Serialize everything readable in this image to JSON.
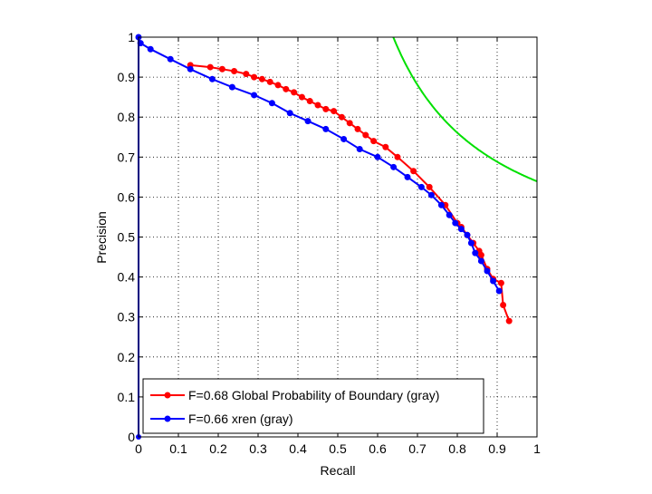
{
  "chart_data": {
    "type": "line",
    "title": "",
    "xlabel": "Recall",
    "ylabel": "Precision",
    "xlim": [
      0,
      1
    ],
    "ylim": [
      0,
      1
    ],
    "grid": true,
    "legend_position": "lower-left",
    "xticks": [
      "0",
      "0.1",
      "0.2",
      "0.3",
      "0.4",
      "0.5",
      "0.6",
      "0.7",
      "0.8",
      "0.9",
      "1"
    ],
    "yticks": [
      "0",
      "0.1",
      "0.2",
      "0.3",
      "0.4",
      "0.5",
      "0.6",
      "0.7",
      "0.8",
      "0.9",
      "1"
    ],
    "series": [
      {
        "name": "F=0.68 Global Probability of Boundary (gray)",
        "color": "#ff0000",
        "markers": true,
        "x": [
          0.13,
          0.18,
          0.21,
          0.24,
          0.27,
          0.29,
          0.31,
          0.33,
          0.35,
          0.37,
          0.39,
          0.41,
          0.43,
          0.45,
          0.47,
          0.49,
          0.51,
          0.53,
          0.55,
          0.57,
          0.59,
          0.62,
          0.65,
          0.69,
          0.73,
          0.77,
          0.8,
          0.81,
          0.825,
          0.84,
          0.855,
          0.86,
          0.875,
          0.89,
          0.91,
          0.915,
          0.93
        ],
        "y": [
          0.93,
          0.925,
          0.92,
          0.915,
          0.908,
          0.9,
          0.895,
          0.888,
          0.88,
          0.87,
          0.862,
          0.85,
          0.84,
          0.83,
          0.82,
          0.815,
          0.8,
          0.785,
          0.77,
          0.755,
          0.74,
          0.725,
          0.7,
          0.665,
          0.625,
          0.58,
          0.535,
          0.525,
          0.505,
          0.485,
          0.465,
          0.455,
          0.42,
          0.395,
          0.385,
          0.33,
          0.29
        ]
      },
      {
        "name": "F=0.66 xren (gray)",
        "color": "#0000ff",
        "markers": true,
        "x": [
          0.0,
          0.005,
          0.03,
          0.08,
          0.13,
          0.185,
          0.235,
          0.29,
          0.335,
          0.38,
          0.425,
          0.47,
          0.515,
          0.555,
          0.6,
          0.64,
          0.675,
          0.71,
          0.735,
          0.76,
          0.78,
          0.795,
          0.81,
          0.825,
          0.835,
          0.845,
          0.86,
          0.875,
          0.89,
          0.905
        ],
        "y": [
          1.0,
          0.985,
          0.97,
          0.945,
          0.92,
          0.895,
          0.875,
          0.855,
          0.835,
          0.81,
          0.79,
          0.77,
          0.745,
          0.72,
          0.7,
          0.675,
          0.65,
          0.625,
          0.605,
          0.58,
          0.555,
          0.535,
          0.52,
          0.505,
          0.485,
          0.46,
          0.44,
          0.415,
          0.39,
          0.365
        ]
      },
      {
        "name": "",
        "color": "#0000ff",
        "markers": false,
        "x": [
          0.0,
          0.0
        ],
        "y": [
          0.0,
          1.0
        ]
      }
    ],
    "iso_f_curve": {
      "color": "#00e000",
      "f_value": 0.78
    }
  }
}
